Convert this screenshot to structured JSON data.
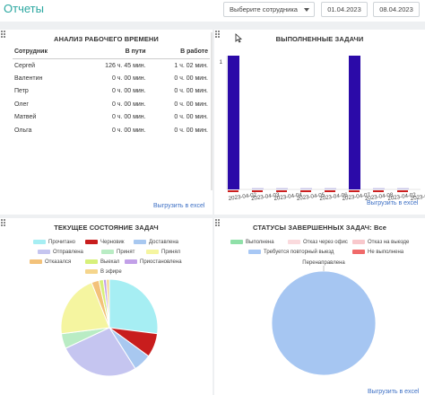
{
  "header": {
    "title": "Отчеты",
    "employee_select": "Выберите сотрудника",
    "date_from": "01.04.2023",
    "date_to": "08.04.2023"
  },
  "work_time": {
    "title": "АНАЛИЗ РАБОЧЕГО ВРЕМЕНИ",
    "columns": [
      "Сотрудник",
      "В пути",
      "В работе"
    ],
    "rows": [
      {
        "name": "Сергей",
        "travel": "126 ч. 45 мин.",
        "work": "1 ч. 02 мин."
      },
      {
        "name": "Валентин",
        "travel": "0 ч. 00 мин.",
        "work": "0 ч. 00 мин."
      },
      {
        "name": "Петр",
        "travel": "0 ч. 00 мин.",
        "work": "0 ч. 00 мин."
      },
      {
        "name": "Олег",
        "travel": "0 ч. 00 мин.",
        "work": "0 ч. 00 мин."
      },
      {
        "name": "Матвей",
        "travel": "0 ч. 00 мин.",
        "work": "0 ч. 00 мин."
      },
      {
        "name": "Ольга",
        "travel": "0 ч. 00 мин.",
        "work": "0 ч. 00 мин."
      }
    ],
    "export": "Выгрузить в excel"
  },
  "completed": {
    "title": "ВЫПОЛНЕННЫЕ ЗАДАЧИ",
    "export": "Выгрузить в excel"
  },
  "current_status": {
    "title": "ТЕКУЩЕЕ СОСТОЯНИЕ ЗАДАЧ"
  },
  "completed_status": {
    "title": "СТАТУСЫ ЗАВЕРШЕННЫХ ЗАДАЧ: Все",
    "export": "Выгрузить в excel"
  },
  "chart_data": [
    {
      "type": "bar",
      "title": "ВЫПОЛНЕННЫЕ ЗАДАЧИ",
      "categories": [
        "2023-04-01",
        "2023-04-02",
        "2023-04-03",
        "2023-04-04",
        "2023-04-05",
        "2023-04-06",
        "2023-04-07",
        "2023-04-08"
      ],
      "tick_labels": [
        "2023-04-02",
        "2023-04-03",
        "2023-04-04",
        "2023-04-05",
        "2023-04-06",
        "2023-04-07",
        "2023-04-08",
        "2023-04-02",
        "2023-04-02"
      ],
      "ytick_label": "1",
      "ylim": [
        0,
        1
      ],
      "series": [
        {
          "color": "#2b0aa8",
          "values": [
            1,
            0,
            0,
            0,
            0,
            1,
            0,
            0
          ]
        },
        {
          "color": "#cc1f1f",
          "values": [
            0,
            0,
            0,
            0,
            0,
            0,
            0,
            0
          ]
        }
      ]
    },
    {
      "type": "pie",
      "title": "ТЕКУЩЕЕ СОСТОЯНИЕ ЗАДАЧ",
      "legend": [
        {
          "label": "Прочитано",
          "color": "#a6eef3"
        },
        {
          "label": "Черновик",
          "color": "#c81d1d"
        },
        {
          "label": "Доставлена",
          "color": "#a8c8f0"
        },
        {
          "label": "Отправлена",
          "color": "#c5c5f0"
        },
        {
          "label": "Принят",
          "color": "#b9ecc4"
        },
        {
          "label": "Принял",
          "color": "#f5f5a0"
        },
        {
          "label": "Отказался",
          "color": "#f3c27a"
        },
        {
          "label": "Выехал",
          "color": "#d7f07a"
        },
        {
          "label": "Приостановлена",
          "color": "#c2a0e8"
        },
        {
          "label": "В эфире",
          "color": "#f5d58c"
        }
      ],
      "values": [
        {
          "label": "Прочитано",
          "value": 27
        },
        {
          "label": "Черновик",
          "value": 8
        },
        {
          "label": "Доставлена",
          "value": 6
        },
        {
          "label": "Отправлена",
          "value": 27
        },
        {
          "label": "Принят",
          "value": 5
        },
        {
          "label": "Принял",
          "value": 21
        },
        {
          "label": "Отказался",
          "value": 2.5
        },
        {
          "label": "Выехал",
          "value": 1.5
        },
        {
          "label": "Приостановлена",
          "value": 1
        },
        {
          "label": "В эфире",
          "value": 1
        }
      ]
    },
    {
      "type": "pie",
      "title": "СТАТУСЫ ЗАВЕРШЕННЫХ ЗАДАЧ: Все",
      "legend": [
        {
          "label": "Выполнена",
          "color": "#8fe0a8"
        },
        {
          "label": "Отказ через офис",
          "color": "#fadadd"
        },
        {
          "label": "Отказ на выезде",
          "color": "#f8c8cc"
        },
        {
          "label": "Требуется повторный выезд",
          "color": "#a8c8f5"
        },
        {
          "label": "Не выполнена",
          "color": "#f06a6a"
        }
      ],
      "slice_label": "Перенаправлена",
      "values": [
        {
          "label": "Перенаправлена",
          "value": 100
        }
      ]
    }
  ]
}
